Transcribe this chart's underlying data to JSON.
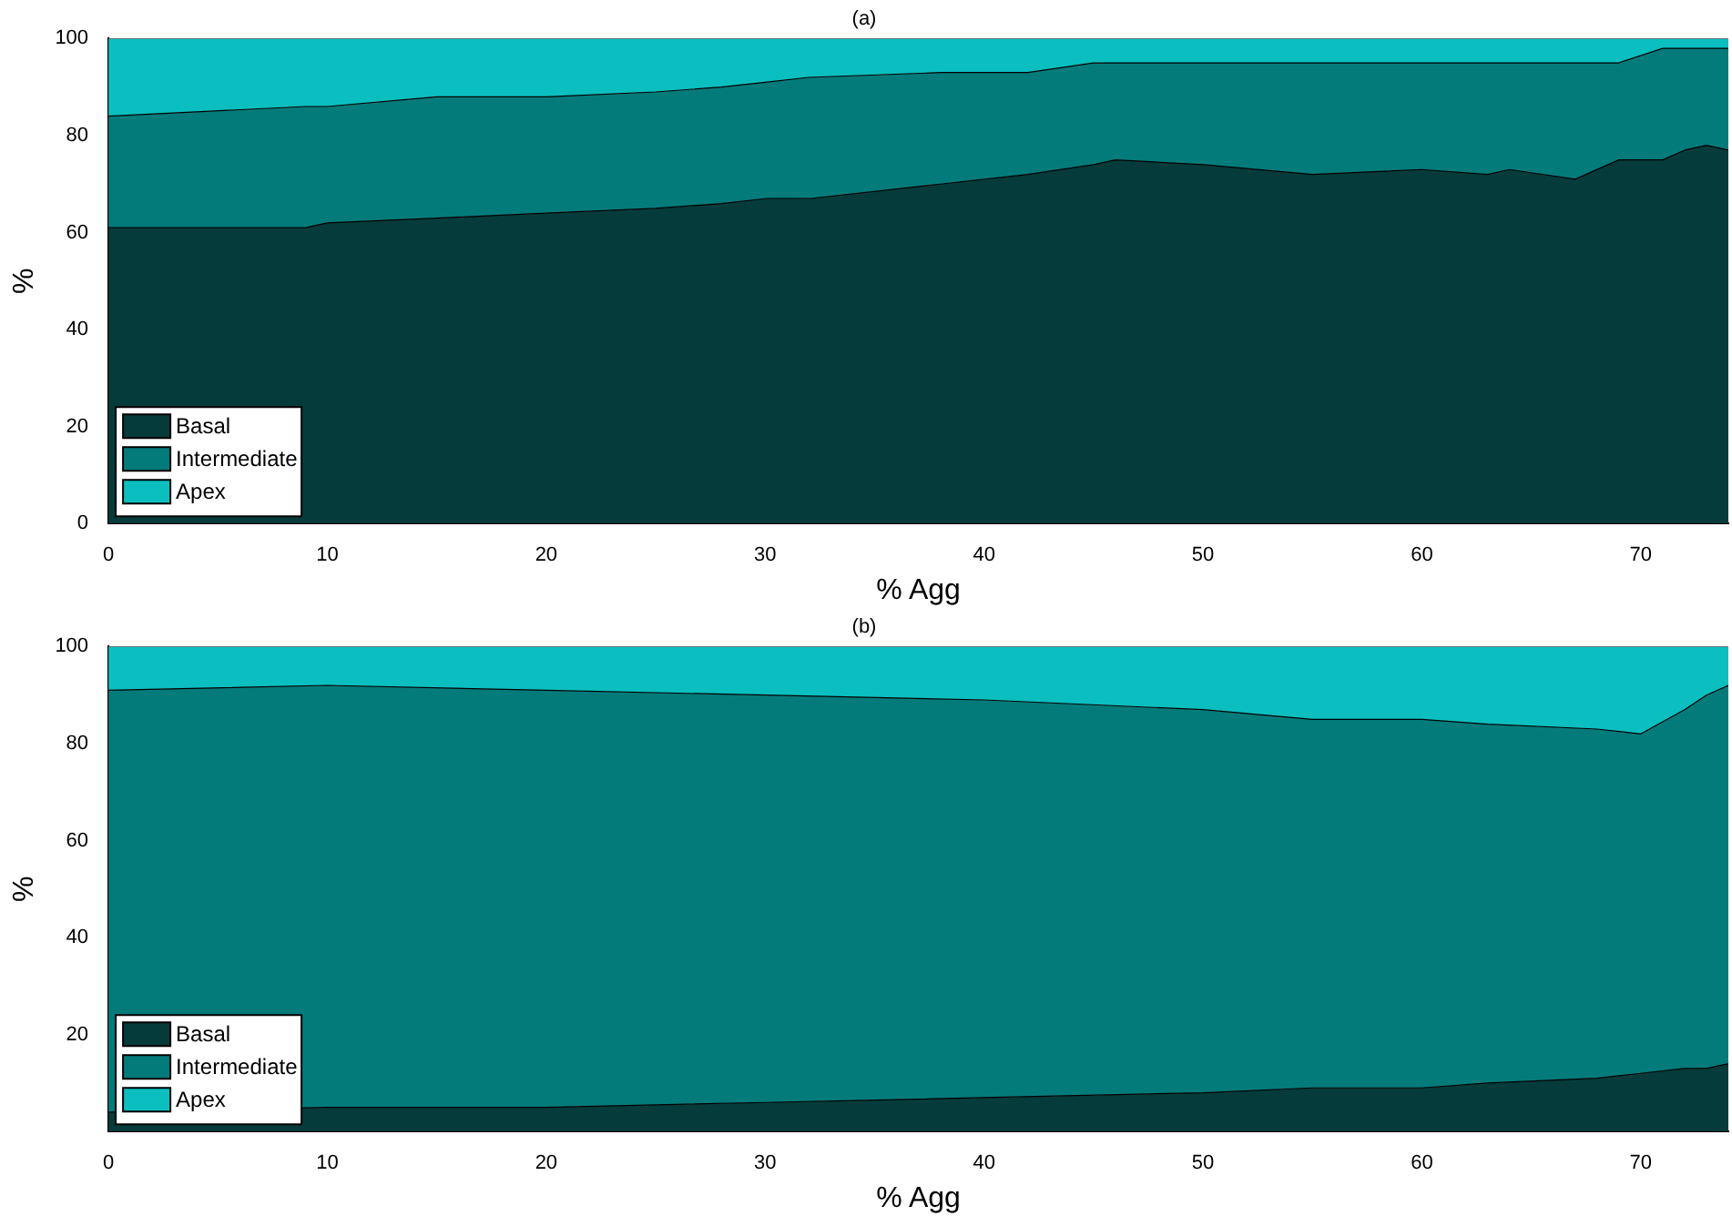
{
  "chart_data": [
    {
      "type": "area",
      "title": "(a)",
      "xlabel": "% Agg",
      "ylabel": "%",
      "stacked": true,
      "legend": "bottom left",
      "grid": false,
      "x": [
        0,
        9,
        10,
        15,
        20,
        25,
        28,
        30,
        32,
        38,
        42,
        45,
        46,
        50,
        55,
        60,
        63,
        64,
        67,
        69,
        71,
        72,
        73,
        74
      ],
      "xlim": [
        0,
        74
      ],
      "xticks": [
        0,
        10,
        20,
        30,
        40,
        50,
        60,
        70
      ],
      "ylim": [
        0,
        100
      ],
      "yticks": [
        0,
        20,
        40,
        60,
        80,
        100
      ],
      "series": [
        {
          "name": "Basal",
          "color": "#053b3b",
          "values": [
            61,
            61,
            62,
            63,
            64,
            65,
            66,
            67,
            67,
            70,
            72,
            74,
            75,
            74,
            72,
            73,
            72,
            73,
            71,
            75,
            75,
            77,
            78,
            77
          ]
        },
        {
          "name": "Intermediate",
          "color": "#047b7b",
          "values": [
            23,
            25,
            24,
            25,
            24,
            24,
            24,
            24,
            25,
            23,
            21,
            21,
            20,
            21,
            23,
            22,
            23,
            22,
            24,
            20,
            23,
            21,
            20,
            21
          ]
        },
        {
          "name": "Apex",
          "color": "#0bbfc0",
          "values": [
            16,
            14,
            14,
            12,
            12,
            11,
            10,
            9,
            8,
            7,
            7,
            5,
            5,
            5,
            5,
            5,
            5,
            5,
            5,
            5,
            2,
            2,
            2,
            2
          ]
        }
      ]
    },
    {
      "type": "area",
      "title": "(b)",
      "xlabel": "% Agg",
      "ylabel": "%",
      "stacked": true,
      "legend": "bottom left",
      "grid": false,
      "x": [
        0,
        10,
        20,
        30,
        40,
        50,
        55,
        60,
        63,
        68,
        70,
        72,
        73,
        74
      ],
      "xlim": [
        0,
        74
      ],
      "xticks": [
        0,
        10,
        20,
        30,
        40,
        50,
        60,
        70
      ],
      "ylim": [
        0,
        100
      ],
      "yticks": [
        20,
        40,
        60,
        80,
        100
      ],
      "series": [
        {
          "name": "Basal",
          "color": "#053b3b",
          "values": [
            4,
            5,
            5,
            6,
            7,
            8,
            9,
            9,
            10,
            11,
            12,
            13,
            13,
            14
          ]
        },
        {
          "name": "Intermediate",
          "color": "#047b7b",
          "values": [
            87,
            87,
            86,
            84,
            82,
            79,
            76,
            76,
            74,
            72,
            70,
            74,
            77,
            78
          ]
        },
        {
          "name": "Apex",
          "color": "#0bbfc0",
          "values": [
            9,
            8,
            9,
            10,
            11,
            13,
            15,
            15,
            16,
            17,
            18,
            13,
            10,
            8
          ]
        }
      ]
    }
  ]
}
